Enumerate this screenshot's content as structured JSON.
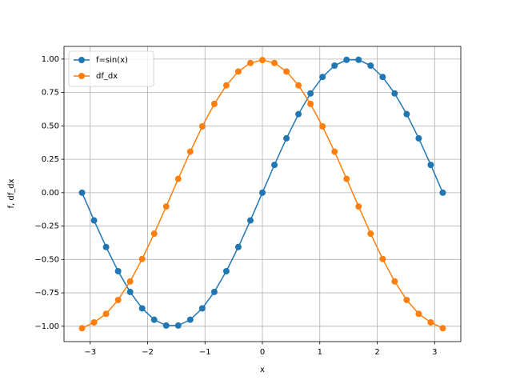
{
  "chart_data": {
    "type": "line",
    "x_label": "x",
    "y_label": "f, df_dx",
    "x": [
      -3.1416,
      -2.9322,
      -2.7227,
      -2.5133,
      -2.3038,
      -2.0944,
      -1.885,
      -1.6755,
      -1.4661,
      -1.2566,
      -1.0472,
      -0.8378,
      -0.6283,
      -0.4189,
      -0.2094,
      0,
      0.2094,
      0.4189,
      0.6283,
      0.8378,
      1.0472,
      1.2566,
      1.4661,
      1.6755,
      1.885,
      2.0944,
      2.3038,
      2.5133,
      2.7227,
      2.9322,
      3.1416
    ],
    "series": [
      {
        "name": "f=sin(x)",
        "color": "#1f77b4",
        "values": [
          0,
          -0.2079,
          -0.4067,
          -0.5878,
          -0.7431,
          -0.866,
          -0.9511,
          -0.9945,
          -0.9945,
          -0.9511,
          -0.866,
          -0.7431,
          -0.5878,
          -0.4067,
          -0.2079,
          0,
          0.2079,
          0.4067,
          0.5878,
          0.7431,
          0.866,
          0.9511,
          0.9945,
          0.9945,
          0.9511,
          0.866,
          0.7431,
          0.5878,
          0.4067,
          0.2079,
          0
        ]
      },
      {
        "name": "df_dx",
        "color": "#ff7f0e",
        "values": [
          -1.0144,
          -0.971,
          -0.9068,
          -0.8031,
          -0.6642,
          -0.4963,
          -0.3068,
          -0.1037,
          0.1037,
          0.3068,
          0.4963,
          0.6642,
          0.8031,
          0.9068,
          0.971,
          0.9927,
          0.971,
          0.9068,
          0.8031,
          0.6642,
          0.4963,
          0.3068,
          0.1037,
          -0.1037,
          -0.3068,
          -0.4963,
          -0.6642,
          -0.8031,
          -0.9068,
          -0.971,
          -1.0144
        ]
      }
    ],
    "xlim": [
      -3.4558,
      3.4558
    ],
    "ylim": [
      -1.1148,
      1.0949
    ],
    "xticks": [
      {
        "value": -3,
        "label": "−3"
      },
      {
        "value": -2,
        "label": "−2"
      },
      {
        "value": -1,
        "label": "−1"
      },
      0,
      1,
      2,
      3
    ],
    "yticks": [
      {
        "value": -1,
        "label": "−1.00"
      },
      {
        "value": -0.75,
        "label": "−0.75"
      },
      {
        "value": -0.5,
        "label": "−0.50"
      },
      {
        "value": -0.25,
        "label": "−0.25"
      },
      {
        "value": 0,
        "label": "0.00"
      },
      {
        "value": 0.25,
        "label": "0.25"
      },
      {
        "value": 0.5,
        "label": "0.50"
      },
      {
        "value": 0.75,
        "label": "0.75"
      },
      {
        "value": 1,
        "label": "1.00"
      }
    ],
    "grid": true,
    "legend": "upper left"
  }
}
